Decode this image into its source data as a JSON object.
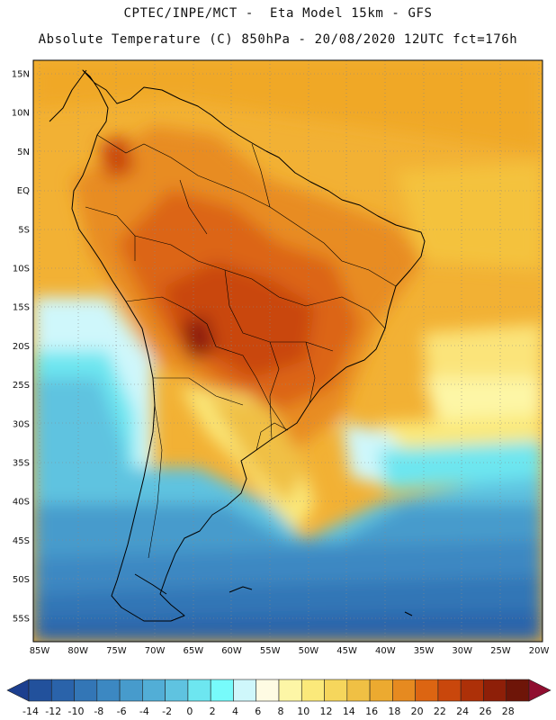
{
  "header": {
    "title_line1": "CPTEC/INPE/MCT -  Eta Model 15km - GFS",
    "title_line2": "Absolute Temperature (C) 850hPa - 20/08/2020 12UTC fct=176h"
  },
  "map": {
    "lat_labels": [
      "15N",
      "10N",
      "5N",
      "EQ",
      "5S",
      "10S",
      "15S",
      "20S",
      "25S",
      "30S",
      "35S",
      "40S",
      "45S",
      "50S",
      "55S"
    ],
    "lon_labels": [
      "85W",
      "80W",
      "75W",
      "70W",
      "65W",
      "60W",
      "55W",
      "50W",
      "45W",
      "40W",
      "35W",
      "30W",
      "25W",
      "20W"
    ]
  },
  "colorbar": {
    "labels": [
      "-14",
      "-12",
      "-10",
      "-8",
      "-6",
      "-4",
      "-2",
      "0",
      "2",
      "4",
      "6",
      "8",
      "10",
      "12",
      "14",
      "16",
      "18",
      "20",
      "22",
      "24",
      "26",
      "28"
    ],
    "colors": [
      "#1c3f8f",
      "#22519c",
      "#2a63aa",
      "#3376b6",
      "#3c88c2",
      "#479bcc",
      "#52aed6",
      "#5fc3e0",
      "#6de6f0",
      "#77fbfb",
      "#cff7fb",
      "#fefbe3",
      "#fdf6a6",
      "#fbe97a",
      "#f6d65c",
      "#f0c044",
      "#ecaa30",
      "#e68a20",
      "#dc6512",
      "#c9470c",
      "#ad3008",
      "#8e1f08",
      "#6e1508",
      "#900e30"
    ]
  }
}
